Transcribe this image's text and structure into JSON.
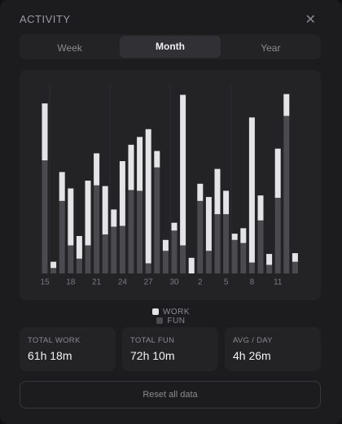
{
  "header": {
    "title": "ACTIVITY"
  },
  "tabs": [
    "Week",
    "Month",
    "Year"
  ],
  "active_tab": 1,
  "chart_data": {
    "type": "bar",
    "stacked": true,
    "categories": [
      "15",
      null,
      null,
      "18",
      null,
      null,
      "21",
      null,
      null,
      "24",
      null,
      null,
      "27",
      null,
      null,
      "30",
      null,
      null,
      "2",
      null,
      null,
      "5",
      null,
      null,
      "8",
      null,
      null,
      "11",
      null,
      null
    ],
    "series": [
      {
        "name": "FUN",
        "color": "#4a4a4f",
        "values": [
          145,
          7,
          93,
          36,
          19,
          36,
          113,
          50,
          60,
          61,
          107,
          106,
          13,
          136,
          29,
          55,
          36,
          0,
          93,
          29,
          76,
          76,
          43,
          39,
          14,
          68,
          11,
          97,
          202,
          15
        ]
      },
      {
        "name": "WORK",
        "color": "#e4e4e7",
        "values": [
          73,
          8,
          37,
          73,
          29,
          83,
          41,
          62,
          22,
          83,
          58,
          69,
          172,
          21,
          14,
          10,
          193,
          20,
          22,
          69,
          58,
          30,
          8,
          19,
          186,
          32,
          14,
          63,
          28,
          11
        ]
      }
    ],
    "ylim": [
      0,
      240
    ]
  },
  "legend_order": [
    1,
    0
  ],
  "stats": [
    {
      "label": "TOTAL WORK",
      "value": "61h 18m"
    },
    {
      "label": "TOTAL FUN",
      "value": "72h 10m"
    },
    {
      "label": "AVG / DAY",
      "value": "4h 26m"
    }
  ],
  "button": "Reset all data"
}
